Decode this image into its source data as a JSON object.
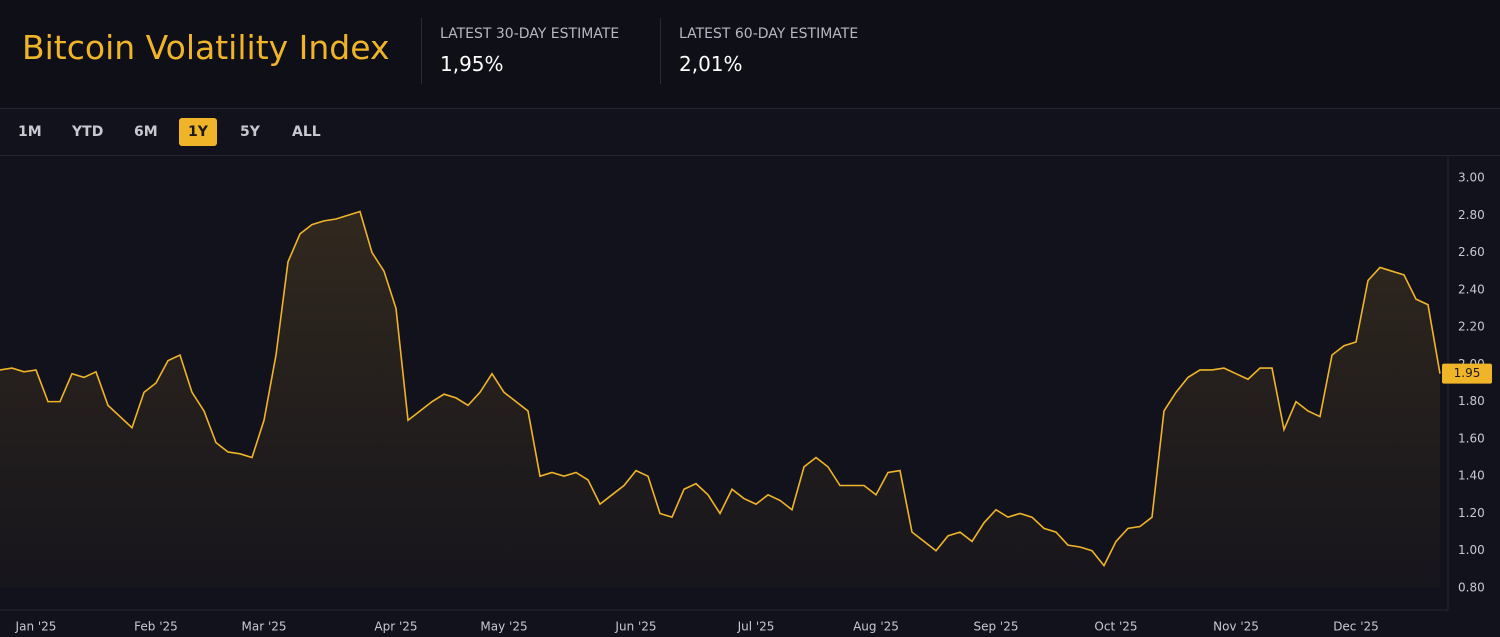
{
  "header": {
    "title": "Bitcoin Volatility Index",
    "stats": [
      {
        "label": "LATEST 30-DAY ESTIMATE",
        "value": "1,95%"
      },
      {
        "label": "LATEST 60-DAY ESTIMATE",
        "value": "2,01%"
      }
    ]
  },
  "ranges": [
    {
      "label": "1M",
      "active": false
    },
    {
      "label": "YTD",
      "active": false
    },
    {
      "label": "6M",
      "active": false
    },
    {
      "label": "1Y",
      "active": true
    },
    {
      "label": "5Y",
      "active": false
    },
    {
      "label": "ALL",
      "active": false
    }
  ],
  "chart_data": {
    "type": "line",
    "grid": false,
    "categories": [
      null,
      null,
      null,
      "Jan '25",
      null,
      null,
      null,
      null,
      null,
      null,
      null,
      null,
      null,
      "Feb '25",
      null,
      null,
      null,
      null,
      null,
      null,
      null,
      null,
      "Mar '25",
      null,
      null,
      null,
      null,
      null,
      null,
      null,
      null,
      null,
      null,
      "Apr '25",
      null,
      null,
      null,
      null,
      null,
      null,
      null,
      null,
      "May '25",
      null,
      null,
      null,
      null,
      null,
      null,
      null,
      null,
      null,
      null,
      "Jun '25",
      null,
      null,
      null,
      null,
      null,
      null,
      null,
      null,
      null,
      "Jul '25",
      null,
      null,
      null,
      null,
      null,
      null,
      null,
      null,
      null,
      "Aug '25",
      null,
      null,
      null,
      null,
      null,
      null,
      null,
      null,
      null,
      "Sep '25",
      null,
      null,
      null,
      null,
      null,
      null,
      null,
      null,
      null,
      "Oct '25",
      null,
      null,
      null,
      null,
      null,
      null,
      null,
      null,
      null,
      "Nov '25",
      null,
      null,
      null,
      null,
      null,
      null,
      null,
      null,
      null,
      "Dec '25",
      null,
      null,
      null,
      null,
      null,
      null,
      null
    ],
    "series": [
      {
        "name": "30-day",
        "color": "#f0b429",
        "values": [
          1.97,
          1.98,
          1.96,
          1.97,
          1.8,
          1.8,
          1.95,
          1.93,
          1.96,
          1.78,
          1.72,
          1.66,
          1.85,
          1.9,
          2.02,
          2.05,
          1.85,
          1.75,
          1.58,
          1.53,
          1.52,
          1.5,
          1.7,
          2.05,
          2.55,
          2.7,
          2.75,
          2.77,
          2.78,
          2.8,
          2.82,
          2.6,
          2.5,
          2.3,
          1.7,
          1.75,
          1.8,
          1.84,
          1.82,
          1.78,
          1.85,
          1.95,
          1.85,
          1.8,
          1.75,
          1.4,
          1.42,
          1.4,
          1.42,
          1.38,
          1.25,
          1.3,
          1.35,
          1.43,
          1.4,
          1.2,
          1.18,
          1.33,
          1.36,
          1.3,
          1.2,
          1.33,
          1.28,
          1.25,
          1.3,
          1.27,
          1.22,
          1.45,
          1.5,
          1.45,
          1.35,
          1.35,
          1.35,
          1.3,
          1.42,
          1.43,
          1.1,
          1.05,
          1.0,
          1.08,
          1.1,
          1.05,
          1.15,
          1.22,
          1.18,
          1.2,
          1.18,
          1.12,
          1.1,
          1.03,
          1.02,
          1.0,
          0.92,
          1.05,
          1.12,
          1.13,
          1.18,
          1.75,
          1.85,
          1.93,
          1.97,
          1.97,
          1.98,
          1.95,
          1.92,
          1.98,
          1.98,
          1.65,
          1.8,
          1.75,
          1.72,
          2.05,
          2.1,
          2.12,
          2.45,
          2.52,
          2.5,
          2.48,
          2.35,
          2.32,
          1.95
        ]
      }
    ],
    "ylim": [
      0.8,
      3.0
    ],
    "yticks": [
      {
        "value": 0.8,
        "label": "0.80"
      },
      {
        "value": 1.0,
        "label": "1.00"
      },
      {
        "value": 1.2,
        "label": "1.20"
      },
      {
        "value": 1.4,
        "label": "1.40"
      },
      {
        "value": 1.6,
        "label": "1.60"
      },
      {
        "value": 1.8,
        "label": "1.80"
      },
      {
        "value": 2.0,
        "label": "2.00"
      },
      {
        "value": 2.2,
        "label": "2.20"
      },
      {
        "value": 2.4,
        "label": "2.40"
      },
      {
        "value": 2.6,
        "label": "2.60"
      },
      {
        "value": 2.8,
        "label": "2.80"
      },
      {
        "value": 3.0,
        "label": "3.00"
      }
    ]
  }
}
